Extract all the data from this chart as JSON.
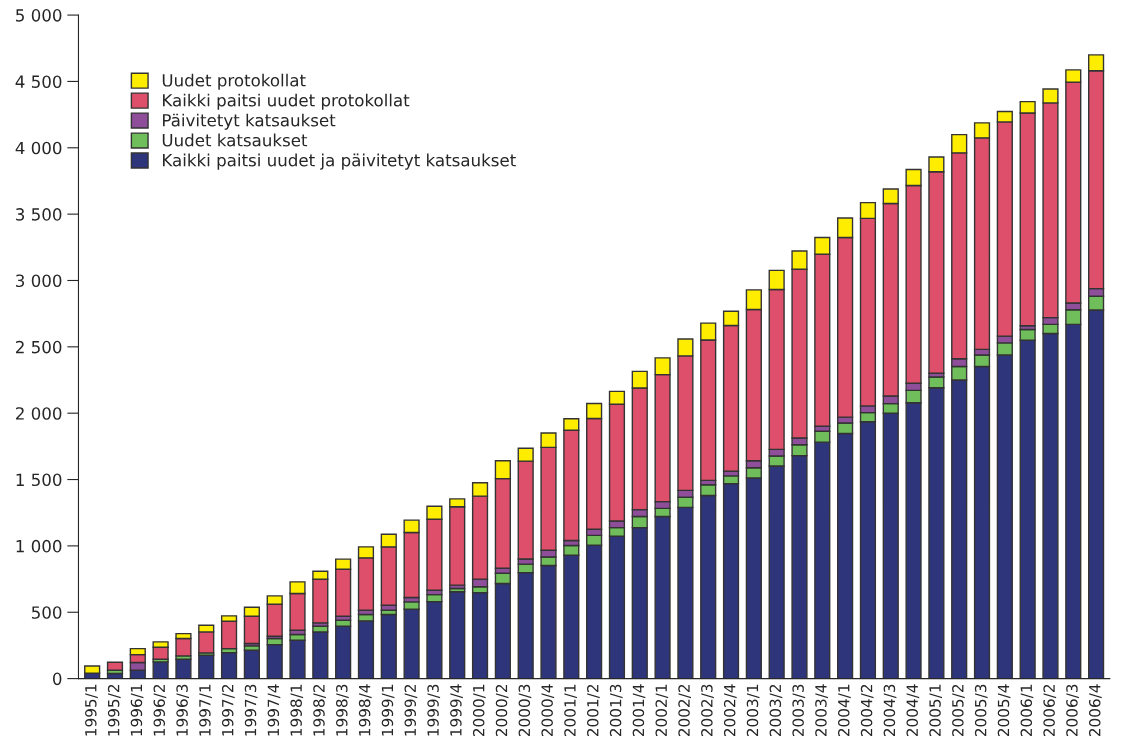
{
  "chart_data": {
    "type": "bar",
    "stacked": true,
    "categories": [
      "1995/1",
      "1995/2",
      "1996/1",
      "1996/2",
      "1996/3",
      "1997/1",
      "1997/2",
      "1997/3",
      "1997/4",
      "1998/1",
      "1998/2",
      "1998/3",
      "1998/4",
      "1999/1",
      "1999/2",
      "1999/3",
      "1999/4",
      "2000/1",
      "2000/2",
      "2000/3",
      "2000/4",
      "2001/1",
      "2001/2",
      "2001/3",
      "2001/4",
      "2002/1",
      "2002/2",
      "2002/3",
      "2002/4",
      "2003/1",
      "2003/2",
      "2003/3",
      "2003/4",
      "2004/1",
      "2004/2",
      "2004/3",
      "2004/4",
      "2005/1",
      "2005/2",
      "2005/3",
      "2005/4",
      "2006/1",
      "2006/2",
      "2006/3",
      "2006/4"
    ],
    "series": [
      {
        "name": "Kaikki paitsi uudet ja päivitetyt katsaukset",
        "color": "#2e357a",
        "values": [
          40,
          38,
          63,
          126,
          146,
          176,
          196,
          214,
          256,
          289,
          352,
          394,
          435,
          483,
          523,
          580,
          654,
          648,
          717,
          799,
          852,
          929,
          1005,
          1074,
          1138,
          1221,
          1290,
          1380,
          1469,
          1512,
          1602,
          1680,
          1782,
          1847,
          1935,
          2000,
          2079,
          2192,
          2250,
          2352,
          2438,
          2550,
          2601,
          2669,
          2778
        ]
      },
      {
        "name": "Uudet katsaukset",
        "color": "#6fbe5b",
        "values": [
          0,
          25,
          0,
          20,
          25,
          18,
          30,
          33,
          46,
          43,
          42,
          46,
          48,
          32,
          55,
          53,
          25,
          44,
          77,
          64,
          64,
          74,
          74,
          64,
          83,
          62,
          77,
          81,
          59,
          77,
          75,
          82,
          82,
          79,
          69,
          72,
          93,
          81,
          102,
          86,
          92,
          81,
          68,
          110,
          103
        ]
      },
      {
        "name": "Päivitetyt katsaukset",
        "color": "#8e4e9a",
        "values": [
          0,
          0,
          58,
          0,
          0,
          0,
          0,
          17,
          17,
          32,
          26,
          30,
          32,
          38,
          33,
          33,
          25,
          58,
          38,
          38,
          51,
          38,
          46,
          50,
          52,
          51,
          51,
          33,
          35,
          53,
          50,
          51,
          38,
          44,
          51,
          58,
          54,
          28,
          58,
          43,
          51,
          28,
          51,
          51,
          58
        ]
      },
      {
        "name": "Kaikki paitsi uudet protokollat",
        "color": "#dd4f6a",
        "values": [
          0,
          60,
          60,
          90,
          131,
          158,
          206,
          206,
          241,
          277,
          329,
          354,
          395,
          440,
          490,
          535,
          591,
          625,
          675,
          738,
          775,
          830,
          835,
          879,
          917,
          957,
          1014,
          1058,
          1098,
          1139,
          1205,
          1272,
          1296,
          1354,
          1413,
          1450,
          1490,
          1518,
          1552,
          1594,
          1614,
          1603,
          1618,
          1665,
          1641
        ]
      },
      {
        "name": "Uudet protokollat",
        "color": "#ffed00",
        "values": [
          55,
          0,
          45,
          41,
          37,
          50,
          41,
          68,
          63,
          88,
          60,
          76,
          83,
          95,
          93,
          98,
          59,
          101,
          135,
          97,
          109,
          87,
          113,
          97,
          125,
          126,
          127,
          127,
          107,
          148,
          144,
          137,
          126,
          147,
          119,
          109,
          120,
          112,
          137,
          113,
          78,
          86,
          105,
          92,
          120
        ]
      }
    ],
    "ylim": [
      0,
      5000
    ],
    "yticks": [
      0,
      {
        "value": 500,
        "label": "500"
      },
      {
        "value": 1000,
        "label": "1 000"
      },
      {
        "value": 1500,
        "label": "1 500"
      },
      {
        "value": 2000,
        "label": "2 000"
      },
      {
        "value": 2500,
        "label": "2 500"
      },
      {
        "value": 3000,
        "label": "3 000"
      },
      {
        "value": 3500,
        "label": "3 500"
      },
      {
        "value": 4000,
        "label": "4 000"
      },
      {
        "value": 4500,
        "label": "4 500"
      },
      {
        "value": 5000,
        "label": "5 000"
      }
    ],
    "grid": false,
    "legend": "top left"
  }
}
